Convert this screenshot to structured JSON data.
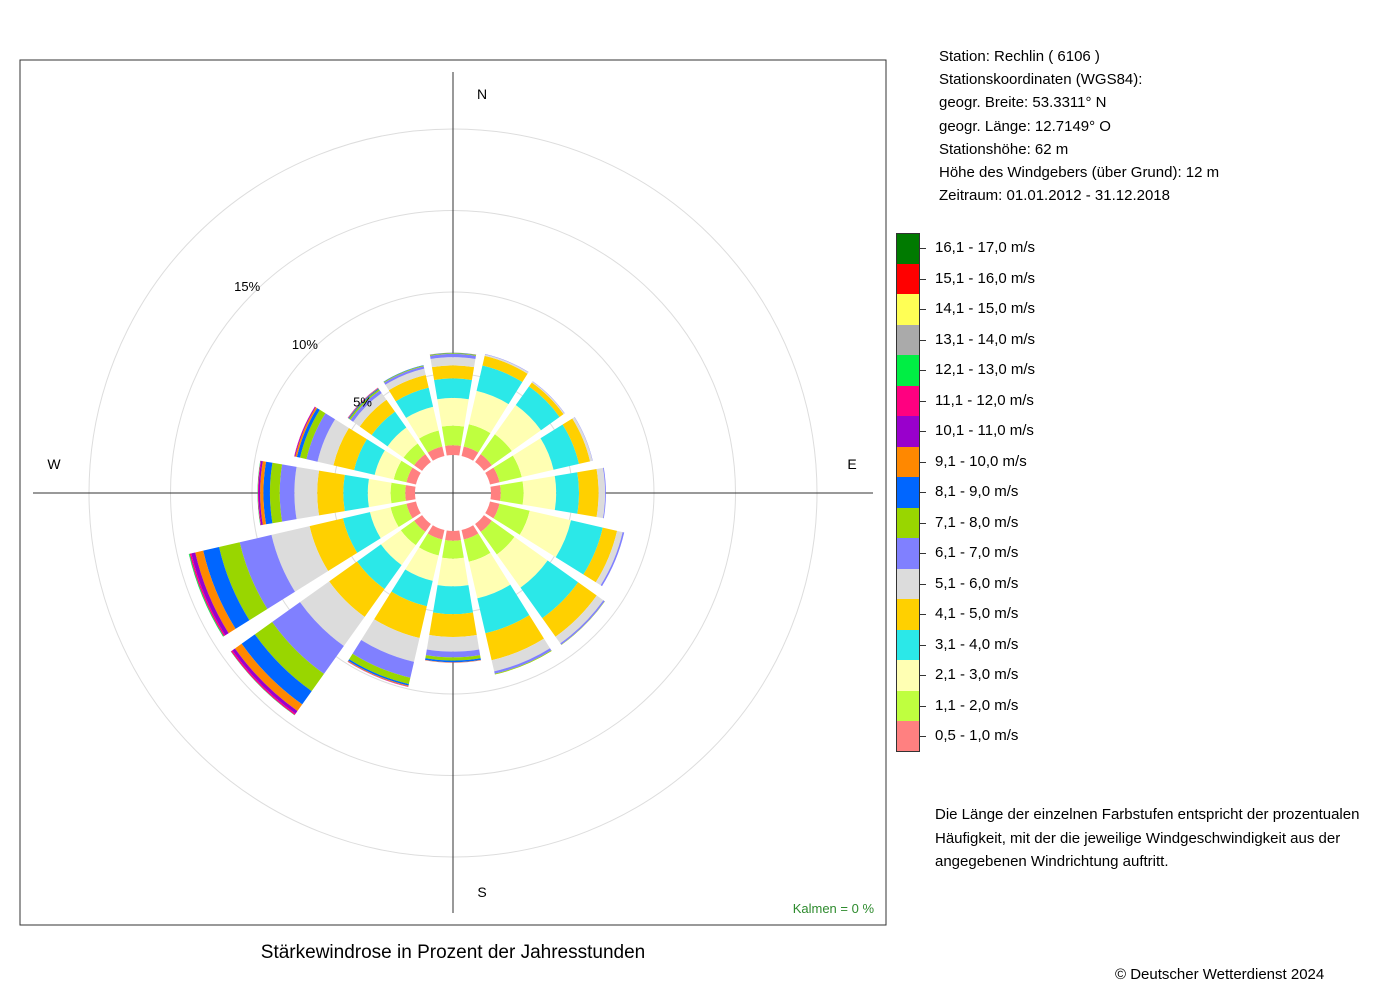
{
  "chart_data": {
    "type": "wind-rose",
    "title": "Stärkewindrose in Prozent der Jahresstunden",
    "unit": "%",
    "calm_label": "Kalmen  =  0 %",
    "ring_labels": [
      "5%",
      "10%",
      "15%"
    ],
    "ring_values": [
      5,
      10,
      15
    ],
    "max_percent": 19.5,
    "directions": [
      "N",
      "E",
      "S",
      "W"
    ],
    "sector_order": [
      "N",
      "NNE",
      "NE",
      "ENE",
      "E",
      "ESE",
      "SE",
      "SSE",
      "S",
      "SSW",
      "SW",
      "WSW",
      "W",
      "WNW",
      "NW",
      "NNW"
    ],
    "classes": [
      {
        "label": "0,5 - 1,0 m/s",
        "color": "#FF8080"
      },
      {
        "label": "1,1 - 2,0 m/s",
        "color": "#BFFF3F"
      },
      {
        "label": "2,1 - 3,0 m/s",
        "color": "#FFFFB3"
      },
      {
        "label": "3,1 - 4,0 m/s",
        "color": "#2BE8E8"
      },
      {
        "label": "4,1 - 5,0 m/s",
        "color": "#FFD000"
      },
      {
        "label": "5,1 - 6,0 m/s",
        "color": "#DCDCDC"
      },
      {
        "label": "6,1 - 7,0 m/s",
        "color": "#8080FF"
      },
      {
        "label": "7,1 - 8,0 m/s",
        "color": "#99D600"
      },
      {
        "label": "8,1 - 9,0 m/s",
        "color": "#0066FF"
      },
      {
        "label": "9,1 - 10,0 m/s",
        "color": "#FF8800"
      },
      {
        "label": "10,1 - 11,0 m/s",
        "color": "#9900CC"
      },
      {
        "label": "11,1 - 12,0 m/s",
        "color": "#FF0080"
      },
      {
        "label": "12,1 - 13,0 m/s",
        "color": "#00EE44"
      },
      {
        "label": "13,1 - 14,0 m/s",
        "color": "#AAAAAA"
      },
      {
        "label": "14,1 - 15,0 m/s",
        "color": "#FFFF55"
      },
      {
        "label": "15,1 - 16,0 m/s",
        "color": "#FF0000"
      },
      {
        "label": "16,1 - 17,0 m/s",
        "color": "#007A00"
      }
    ],
    "sectors": [
      [
        0.6,
        1.2,
        1.7,
        1.2,
        0.8,
        0.5,
        0.2,
        0.05,
        0.02,
        0.01,
        0,
        0,
        0,
        0,
        0,
        0,
        0
      ],
      [
        0.6,
        1.4,
        2.1,
        1.6,
        0.6,
        0.1,
        0.02,
        0,
        0,
        0,
        0,
        0,
        0,
        0,
        0,
        0,
        0
      ],
      [
        0.6,
        1.5,
        2.2,
        1.4,
        0.3,
        0.07,
        0.02,
        0,
        0,
        0,
        0,
        0,
        0,
        0,
        0,
        0,
        0
      ],
      [
        0.6,
        1.4,
        2.0,
        1.6,
        0.7,
        0.15,
        0.02,
        0,
        0,
        0,
        0,
        0,
        0,
        0,
        0,
        0,
        0
      ],
      [
        0.6,
        1.4,
        2.0,
        1.4,
        1.2,
        0.4,
        0.05,
        0,
        0,
        0,
        0,
        0,
        0,
        0,
        0,
        0,
        0
      ],
      [
        0.6,
        1.9,
        2.6,
        2.0,
        0.9,
        0.35,
        0.1,
        0,
        0,
        0,
        0,
        0,
        0,
        0,
        0,
        0,
        0
      ],
      [
        0.6,
        1.7,
        2.5,
        2.3,
        1.4,
        0.5,
        0.1,
        0.02,
        0,
        0,
        0,
        0,
        0,
        0,
        0,
        0,
        0
      ],
      [
        0.6,
        1.4,
        2.3,
        2.2,
        1.7,
        0.7,
        0.15,
        0.05,
        0,
        0,
        0,
        0,
        0,
        0,
        0,
        0,
        0
      ],
      [
        0.6,
        1.1,
        1.7,
        1.7,
        1.4,
        0.9,
        0.35,
        0.2,
        0.1,
        0.02,
        0.01,
        0,
        0,
        0,
        0,
        0,
        0
      ],
      [
        0.6,
        1.0,
        1.6,
        1.6,
        2.0,
        1.5,
        1.0,
        0.4,
        0.1,
        0.05,
        0.02,
        0.01,
        0,
        0,
        0,
        0,
        0
      ],
      [
        0.6,
        1.0,
        1.5,
        1.8,
        2.1,
        2.2,
        2.1,
        1.3,
        1.0,
        0.5,
        0.2,
        0.1,
        0.02,
        0,
        0,
        0,
        0
      ],
      [
        0.6,
        1.0,
        1.3,
        1.7,
        2.1,
        2.4,
        2.0,
        1.3,
        1.0,
        0.5,
        0.25,
        0.1,
        0.05,
        0.01,
        0,
        0,
        0
      ],
      [
        0.6,
        0.9,
        1.4,
        1.5,
        1.6,
        1.4,
        0.9,
        0.6,
        0.4,
        0.2,
        0.1,
        0.04,
        0.02,
        0,
        0,
        0,
        0
      ],
      [
        0.6,
        0.8,
        1.2,
        1.3,
        1.3,
        1.0,
        0.7,
        0.4,
        0.2,
        0.1,
        0.05,
        0.02,
        0,
        0,
        0,
        0,
        0
      ],
      [
        0.6,
        0.8,
        1.2,
        1.2,
        0.9,
        0.5,
        0.2,
        0.1,
        0.05,
        0.03,
        0.02,
        0.01,
        0,
        0,
        0,
        0,
        0
      ],
      [
        0.6,
        1.0,
        1.5,
        1.2,
        0.8,
        0.4,
        0.15,
        0.05,
        0.02,
        0,
        0,
        0,
        0,
        0,
        0,
        0,
        0
      ]
    ]
  },
  "station_info": [
    "Station:  Rechlin  ( 6106 )",
    "Stationskoordinaten (WGS84):",
    "geogr. Breite: 53.3311° N",
    "geogr. Länge: 12.7149° O",
    "Stationshöhe: 62 m",
    "Höhe des Windgebers (über Grund): 12 m",
    "Zeitraum: 01.01.2012 - 31.12.2018"
  ],
  "note": "Die Länge der einzelnen Farbstufen entspricht der prozentualen Häufigkeit, mit der die jeweilige Windgeschwindigkeit aus der angegebenen Windrichtung auftritt.",
  "copyright": "© Deutscher Wetterdienst  2024"
}
